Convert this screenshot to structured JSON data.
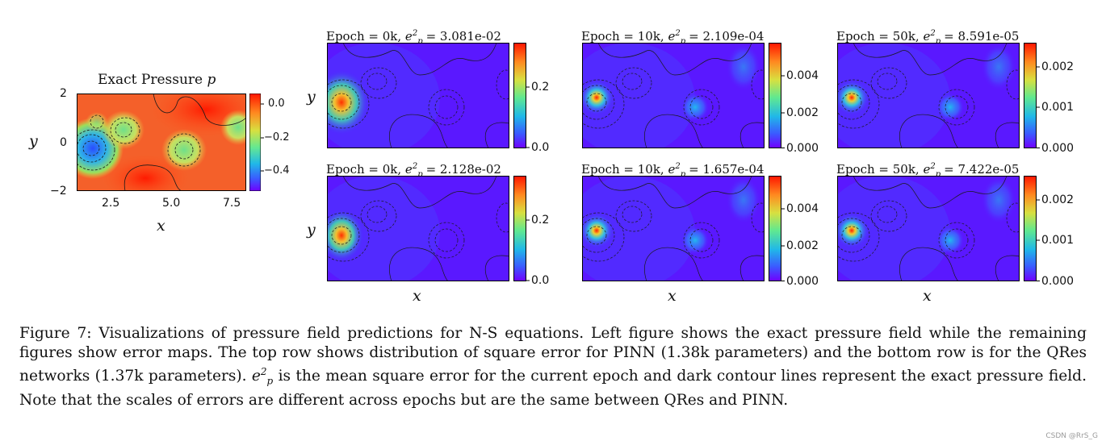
{
  "exact_panel": {
    "title": "Exact Pressure p",
    "title_text": "Exact Pressure ",
    "title_var": "p",
    "x_label": "x",
    "y_label": "y",
    "x_ticks": [
      "2.5",
      "5.0",
      "7.5"
    ],
    "y_ticks": [
      "2",
      "0",
      "−2"
    ],
    "colorbar_ticks": [
      "0.0",
      "−0.2",
      "−0.4"
    ]
  },
  "error_panels": [
    {
      "row": "top",
      "epoch": "0k",
      "prefix": "Epoch = 0k, ",
      "mse": "= 3.081e-02",
      "colorbar_ticks": [
        "0.2",
        "0.0"
      ]
    },
    {
      "row": "top",
      "epoch": "10k",
      "prefix": "Epoch = 10k, ",
      "mse": "= 2.109e-04",
      "colorbar_ticks": [
        "0.004",
        "0.002",
        "0.000"
      ]
    },
    {
      "row": "top",
      "epoch": "50k",
      "prefix": "Epoch = 50k, ",
      "mse": "= 8.591e-05",
      "colorbar_ticks": [
        "0.002",
        "0.001",
        "0.000"
      ]
    },
    {
      "row": "bottom",
      "epoch": "0k",
      "prefix": "Epoch = 0k, ",
      "mse": "= 2.128e-02",
      "colorbar_ticks": [
        "0.2",
        "0.0"
      ]
    },
    {
      "row": "bottom",
      "epoch": "10k",
      "prefix": "Epoch = 10k, ",
      "mse": "= 1.657e-04",
      "colorbar_ticks": [
        "0.004",
        "0.002",
        "0.000"
      ]
    },
    {
      "row": "bottom",
      "epoch": "50k",
      "prefix": "Epoch = 50k, ",
      "mse": "= 7.422e-05",
      "colorbar_ticks": [
        "0.002",
        "0.001",
        "0.000"
      ]
    }
  ],
  "axis_labels": {
    "x": "x",
    "y": "y"
  },
  "caption": {
    "part1": "Figure 7: Visualizations of pressure field predictions for N-S equations. Left figure shows the exact pressure field while the remaining figures show error maps. The top row shows distribution of square error for PINN (1.38k parameters) and the bottom row is for the QRes networks (1.37k parameters). ",
    "part2": " is the mean square error for the current epoch and dark contour lines represent the exact pressure field. Note that the scales of errors are different across epochs but are the same between QRes and PINN."
  },
  "watermark": "CSDN @RrS_G",
  "colors": {
    "rainbow_low": "#6a00ff",
    "rainbow_high": "#ff2a00",
    "contour": "#1a1a1a"
  }
}
